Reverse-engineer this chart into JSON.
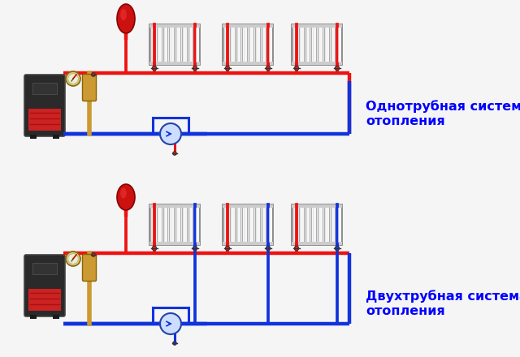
{
  "bg_color": "#f5f5f5",
  "red": "#ee1111",
  "blue": "#1133dd",
  "boiler_dark": "#252525",
  "boiler_red": "#cc2222",
  "tank_red": "#cc1111",
  "radiator_fill": "#f2f2f2",
  "radiator_edge": "#999999",
  "pipe_lw": 3.2,
  "label1": "Однотрубная система\nотопления",
  "label2": "Двухтрубная система\nотопления",
  "label_color": "#0000ff",
  "label_fontsize": 11.5,
  "pump_fill": "#ccddff",
  "pump_edge": "#2244aa",
  "gauge_fill": "#ddcc88",
  "gauge_edge": "#886600",
  "manifold_fill": "#cc9933",
  "manifold_edge": "#886600",
  "valve_red": "#dd2222",
  "valve_blue": "#2233dd"
}
